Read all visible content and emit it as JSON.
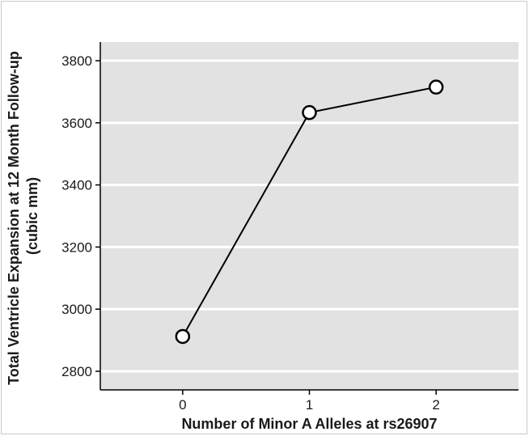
{
  "chart_data": {
    "type": "line",
    "title": "",
    "xlabel": "Number of Minor A Alleles at rs26907",
    "ylabel": [
      "Total Ventricle Expansion at 12 Month Follow-up",
      "(cubic mm)"
    ],
    "x": [
      0,
      1,
      2
    ],
    "x_ticks": [
      "0",
      "1",
      "2"
    ],
    "series": [
      {
        "values": [
          2912,
          3633,
          3715
        ]
      }
    ],
    "xlim": [
      -0.65,
      2.65
    ],
    "ylim": [
      2740,
      3860
    ],
    "y_ticks": [
      2800,
      3000,
      3200,
      3400,
      3600,
      3800
    ],
    "grid": "horizontal",
    "colors": {
      "panel": "#e2e2e2",
      "grid": "#ffffff",
      "line": "#000000",
      "marker_fill": "#ffffff"
    }
  }
}
